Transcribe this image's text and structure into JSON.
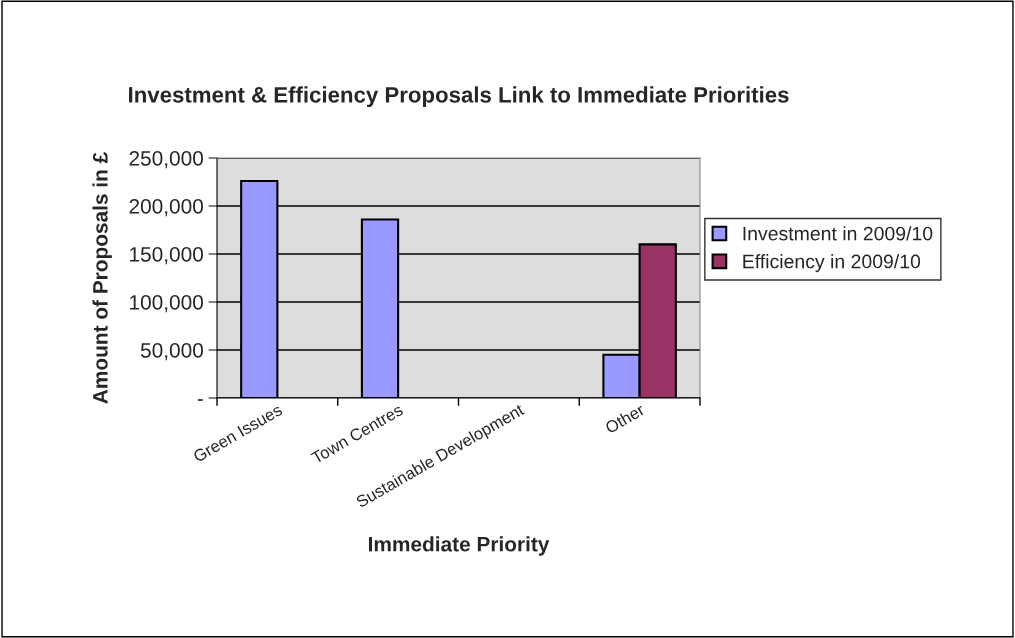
{
  "chart_data": {
    "type": "bar",
    "title": "Investment & Efficiency Proposals Link to Immediate Priorities",
    "xlabel": "Immediate Priority",
    "ylabel": "Amount of Proposals in £",
    "categories": [
      "Green Issues",
      "Town Centres",
      "Sustainable Development",
      "Other"
    ],
    "series": [
      {
        "name": "Investment in 2009/10",
        "color": "#9999ff",
        "values": [
          226000,
          186000,
          null,
          45000
        ]
      },
      {
        "name": "Efficiency in 2009/10",
        "color": "#993366",
        "values": [
          null,
          null,
          null,
          160000
        ]
      }
    ],
    "ylim": [
      0,
      250000
    ],
    "yticks": [
      {
        "value": 0,
        "label": "-"
      },
      {
        "value": 50000,
        "label": "50,000"
      },
      {
        "value": 100000,
        "label": "100,000"
      },
      {
        "value": 150000,
        "label": "150,000"
      },
      {
        "value": 200000,
        "label": "200,000"
      },
      {
        "value": 250000,
        "label": "250,000"
      }
    ],
    "grid": "y",
    "legend": "right"
  }
}
